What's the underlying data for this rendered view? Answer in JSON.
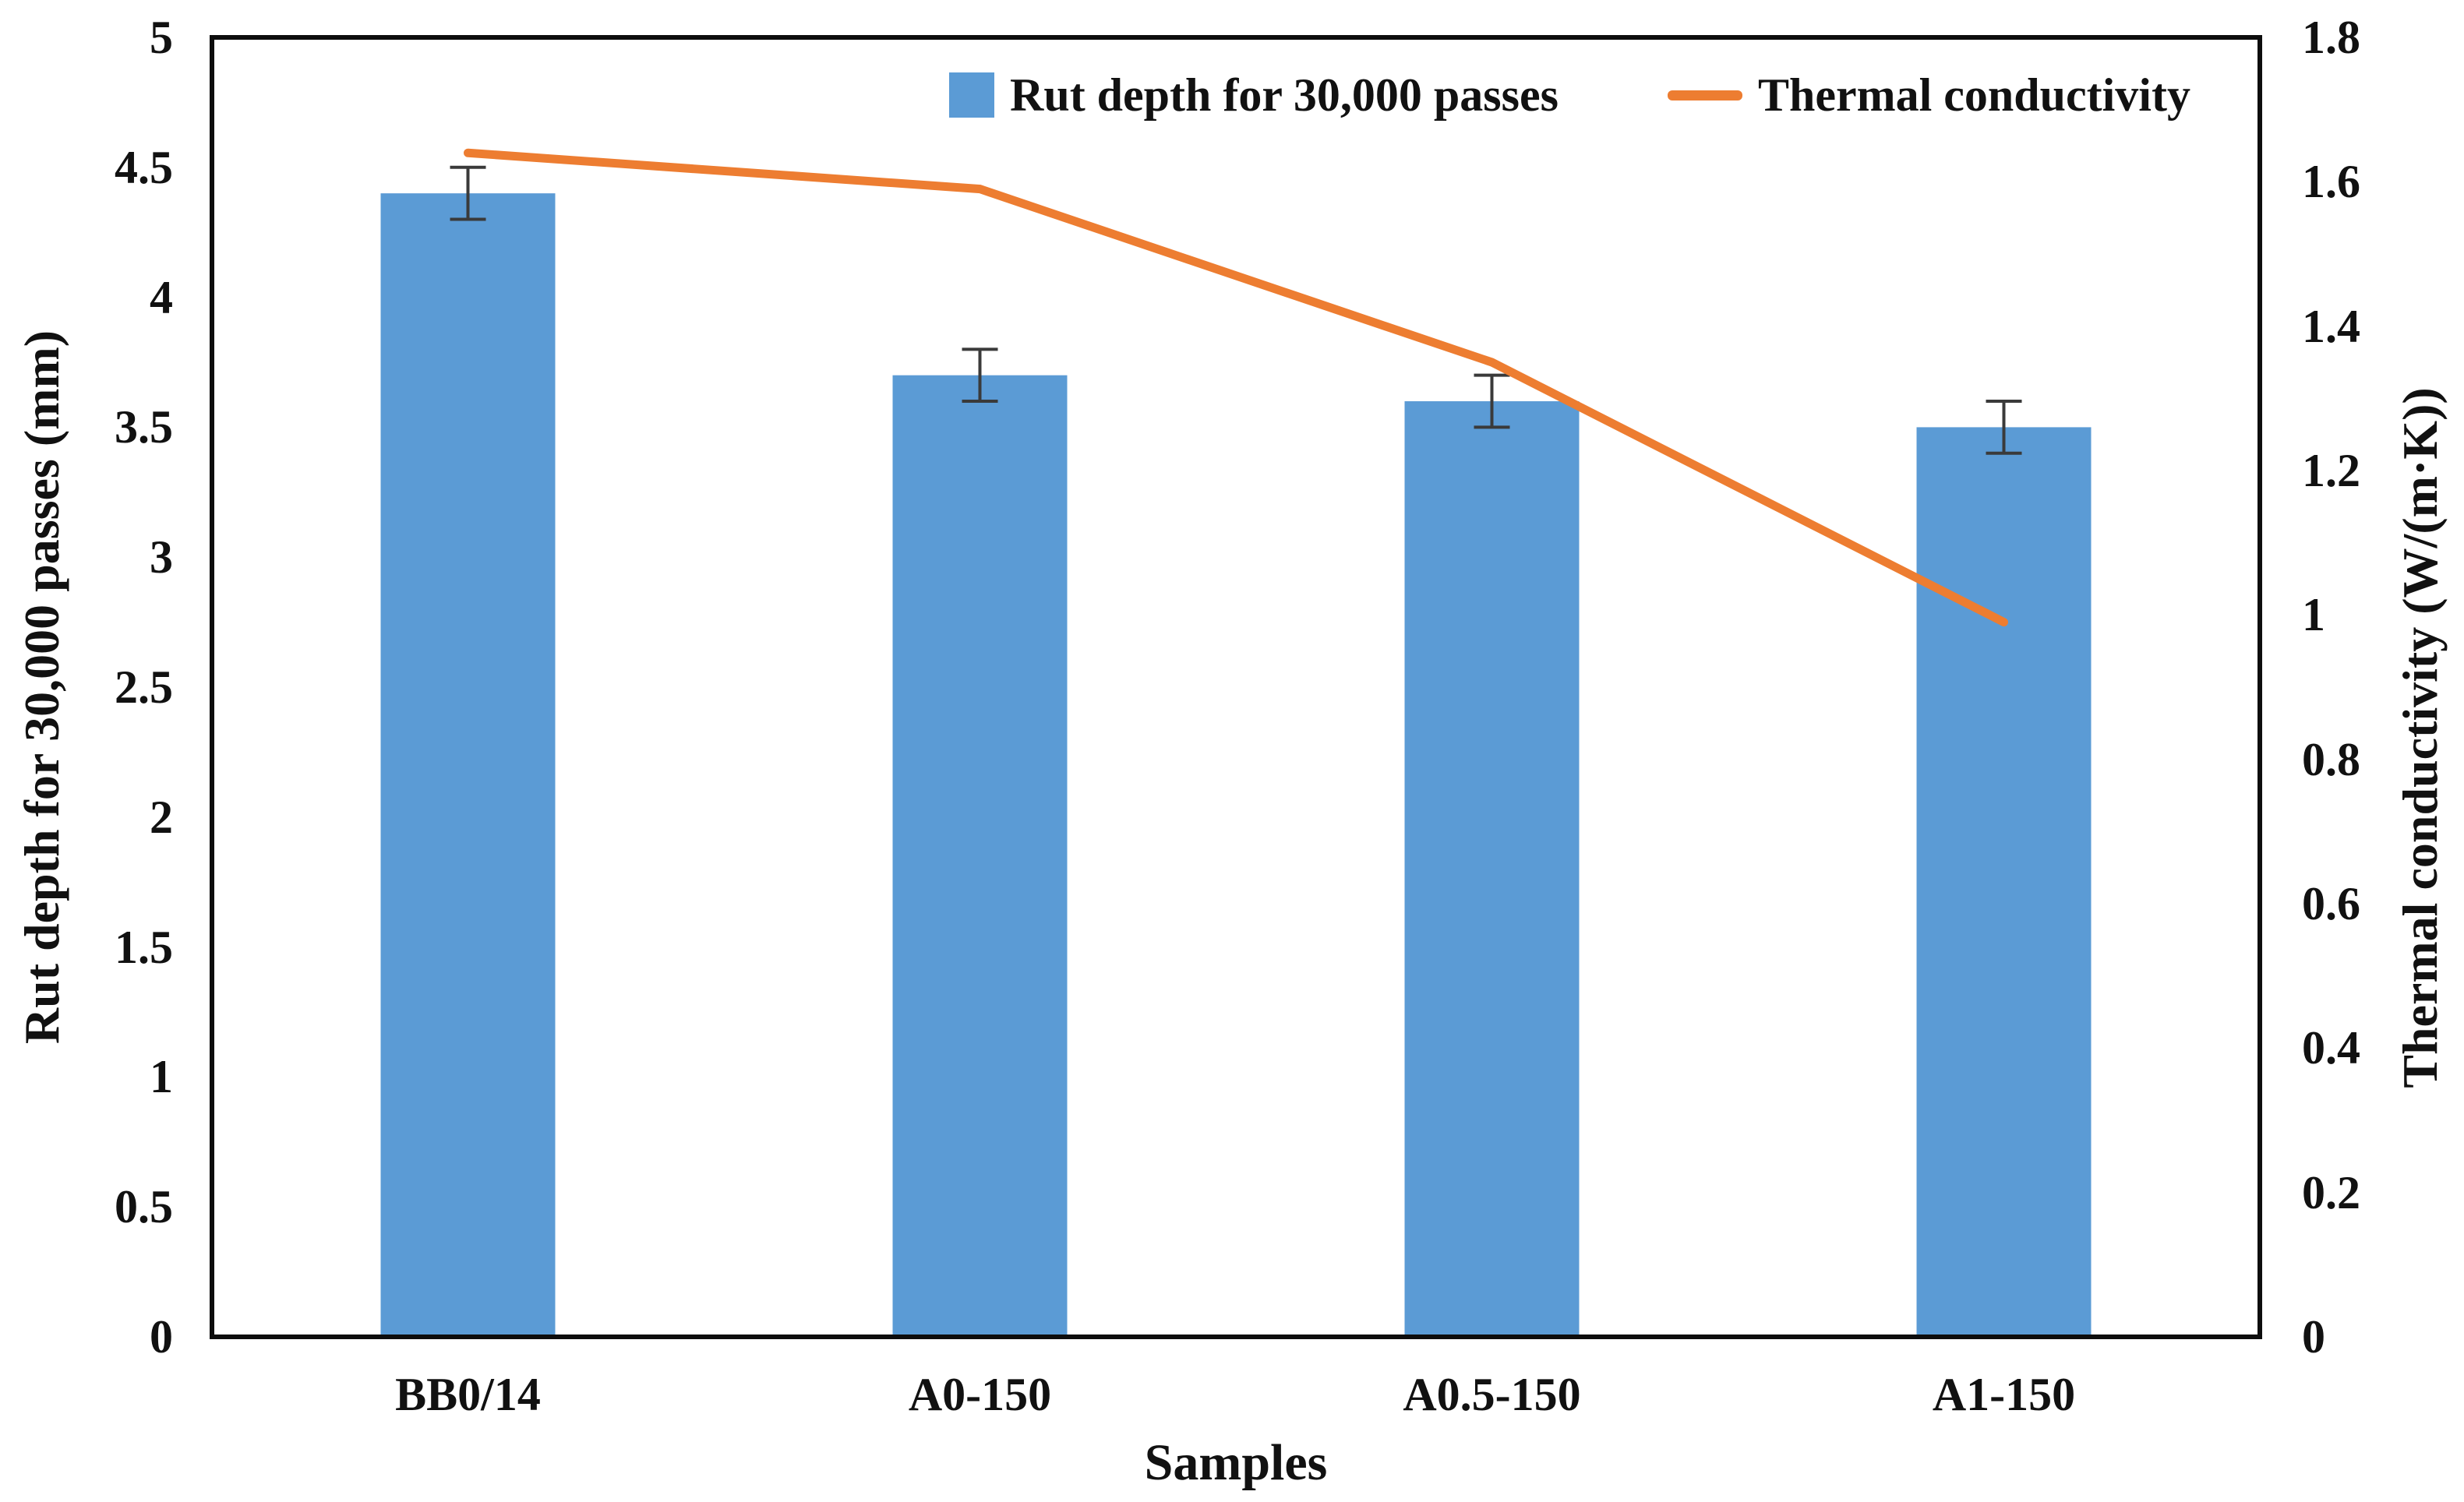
{
  "chart_data": {
    "type": "combo",
    "categories": [
      "BB0/14",
      "A0-150",
      "A0.5-150",
      "A1-150"
    ],
    "series": [
      {
        "name": "Rut depth for 30,000 passes",
        "type": "bar",
        "axis": "left",
        "values": [
          4.4,
          3.7,
          3.6,
          3.5
        ],
        "error_bars": [
          0.1,
          0.1,
          0.1,
          0.1
        ],
        "color": "#5B9BD5"
      },
      {
        "name": "Thermal conductivity",
        "type": "line",
        "axis": "right",
        "values": [
          1.64,
          1.59,
          1.35,
          0.99
        ],
        "color": "#ED7D31"
      }
    ],
    "left_axis": {
      "label": "Rut depth for 30,000 passes (mm)",
      "min": 0,
      "max": 5,
      "ticks": [
        "0",
        "0.5",
        "1",
        "1.5",
        "2",
        "2.5",
        "3",
        "3.5",
        "4",
        "4.5",
        "5"
      ]
    },
    "right_axis": {
      "label": "Thermal conductivity (W/(m·K))",
      "min": 0,
      "max": 1.8,
      "ticks": [
        "0",
        "0.2",
        "0.4",
        "0.6",
        "0.8",
        "1",
        "1.2",
        "1.4",
        "1.6",
        "1.8"
      ]
    },
    "x_axis": {
      "label": "Samples"
    },
    "legend_position": "top-inside",
    "grid": false,
    "colors": {
      "bar_fill": "#5B9BD5",
      "line_stroke": "#ED7D31",
      "error_bar": "#3a3a3a",
      "plot_border": "#0d0d0d",
      "text": "#111111",
      "background": "#ffffff"
    }
  }
}
